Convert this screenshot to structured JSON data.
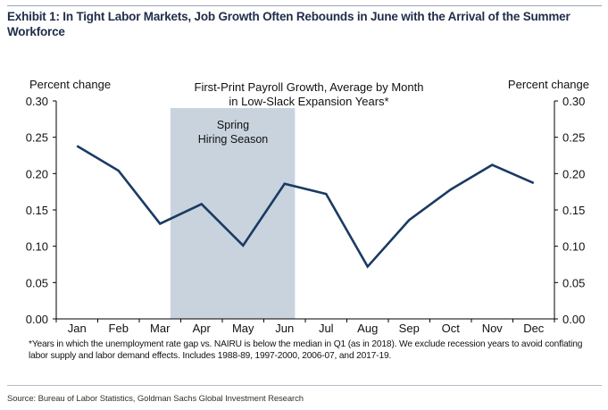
{
  "exhibit": {
    "title": "Exhibit 1: In Tight Labor Markets, Job Growth Often Rebounds in June with the Arrival of the Summer Workforce",
    "footnote": "*Years in which the unemployment rate gap vs. NAIRU is below the median in Q1 (as in 2018).  We exclude recession years to avoid conflating labor supply and labor demand effects. Includes 1988-89, 1997-2000, 2006-07, and 2017-19.",
    "source": "Source: Bureau of Labor Statistics, Goldman Sachs Global Investment Research"
  },
  "colors": {
    "line": "#1a3a63",
    "shade": "#c8d3dd",
    "axis": "#000000",
    "title": "#1f2d4a"
  },
  "chart_data": {
    "type": "line",
    "title": "First-Print Payroll Growth, Average by Month",
    "subtitle": "in Low-Slack Expansion Years*",
    "ylabel_left": "Percent change",
    "ylabel_right": "Percent change",
    "ylim": [
      0,
      0.3
    ],
    "yticks": [
      "0.00",
      "0.05",
      "0.10",
      "0.15",
      "0.20",
      "0.25",
      "0.30"
    ],
    "categories": [
      "Jan",
      "Feb",
      "Mar",
      "Apr",
      "May",
      "Jun",
      "Jul",
      "Aug",
      "Sep",
      "Oct",
      "Nov",
      "Dec"
    ],
    "values": [
      0.238,
      0.204,
      0.131,
      0.158,
      0.101,
      0.186,
      0.172,
      0.072,
      0.136,
      0.178,
      0.212,
      0.187
    ],
    "shaded_region": {
      "label_line1": "Spring",
      "label_line2": "Hiring Season",
      "from": "Mar",
      "to": "Jun"
    },
    "grid": false,
    "legend": "none"
  }
}
